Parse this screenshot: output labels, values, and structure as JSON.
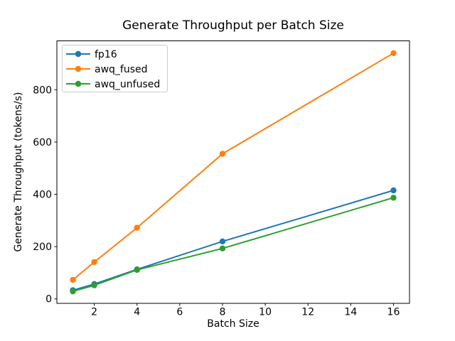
{
  "chart_data": {
    "type": "line",
    "title": "Generate Throughput per Batch Size",
    "xlabel": "Batch Size",
    "ylabel": "Generate Throughput (tokens/s)",
    "x": [
      1,
      2,
      4,
      8,
      16
    ],
    "series": [
      {
        "name": "fp16",
        "color": "#1f77b4",
        "values": [
          33,
          57,
          113,
          220,
          415
        ]
      },
      {
        "name": "awq_fused",
        "color": "#ff7f0e",
        "values": [
          73,
          141,
          272,
          555,
          940
        ]
      },
      {
        "name": "awq_unfused",
        "color": "#2ca02c",
        "values": [
          29,
          52,
          111,
          193,
          387
        ]
      }
    ],
    "xticks": [
      2,
      4,
      6,
      8,
      10,
      12,
      14,
      16
    ],
    "yticks": [
      0,
      200,
      400,
      600,
      800
    ],
    "xlim": [
      0.25,
      16.75
    ],
    "ylim": [
      -17,
      987
    ],
    "grid": false,
    "marker": "o",
    "legend_position": "upper left",
    "colors": {
      "spine": "#000000",
      "legend_border": "#cccccc",
      "background": "#ffffff"
    }
  }
}
